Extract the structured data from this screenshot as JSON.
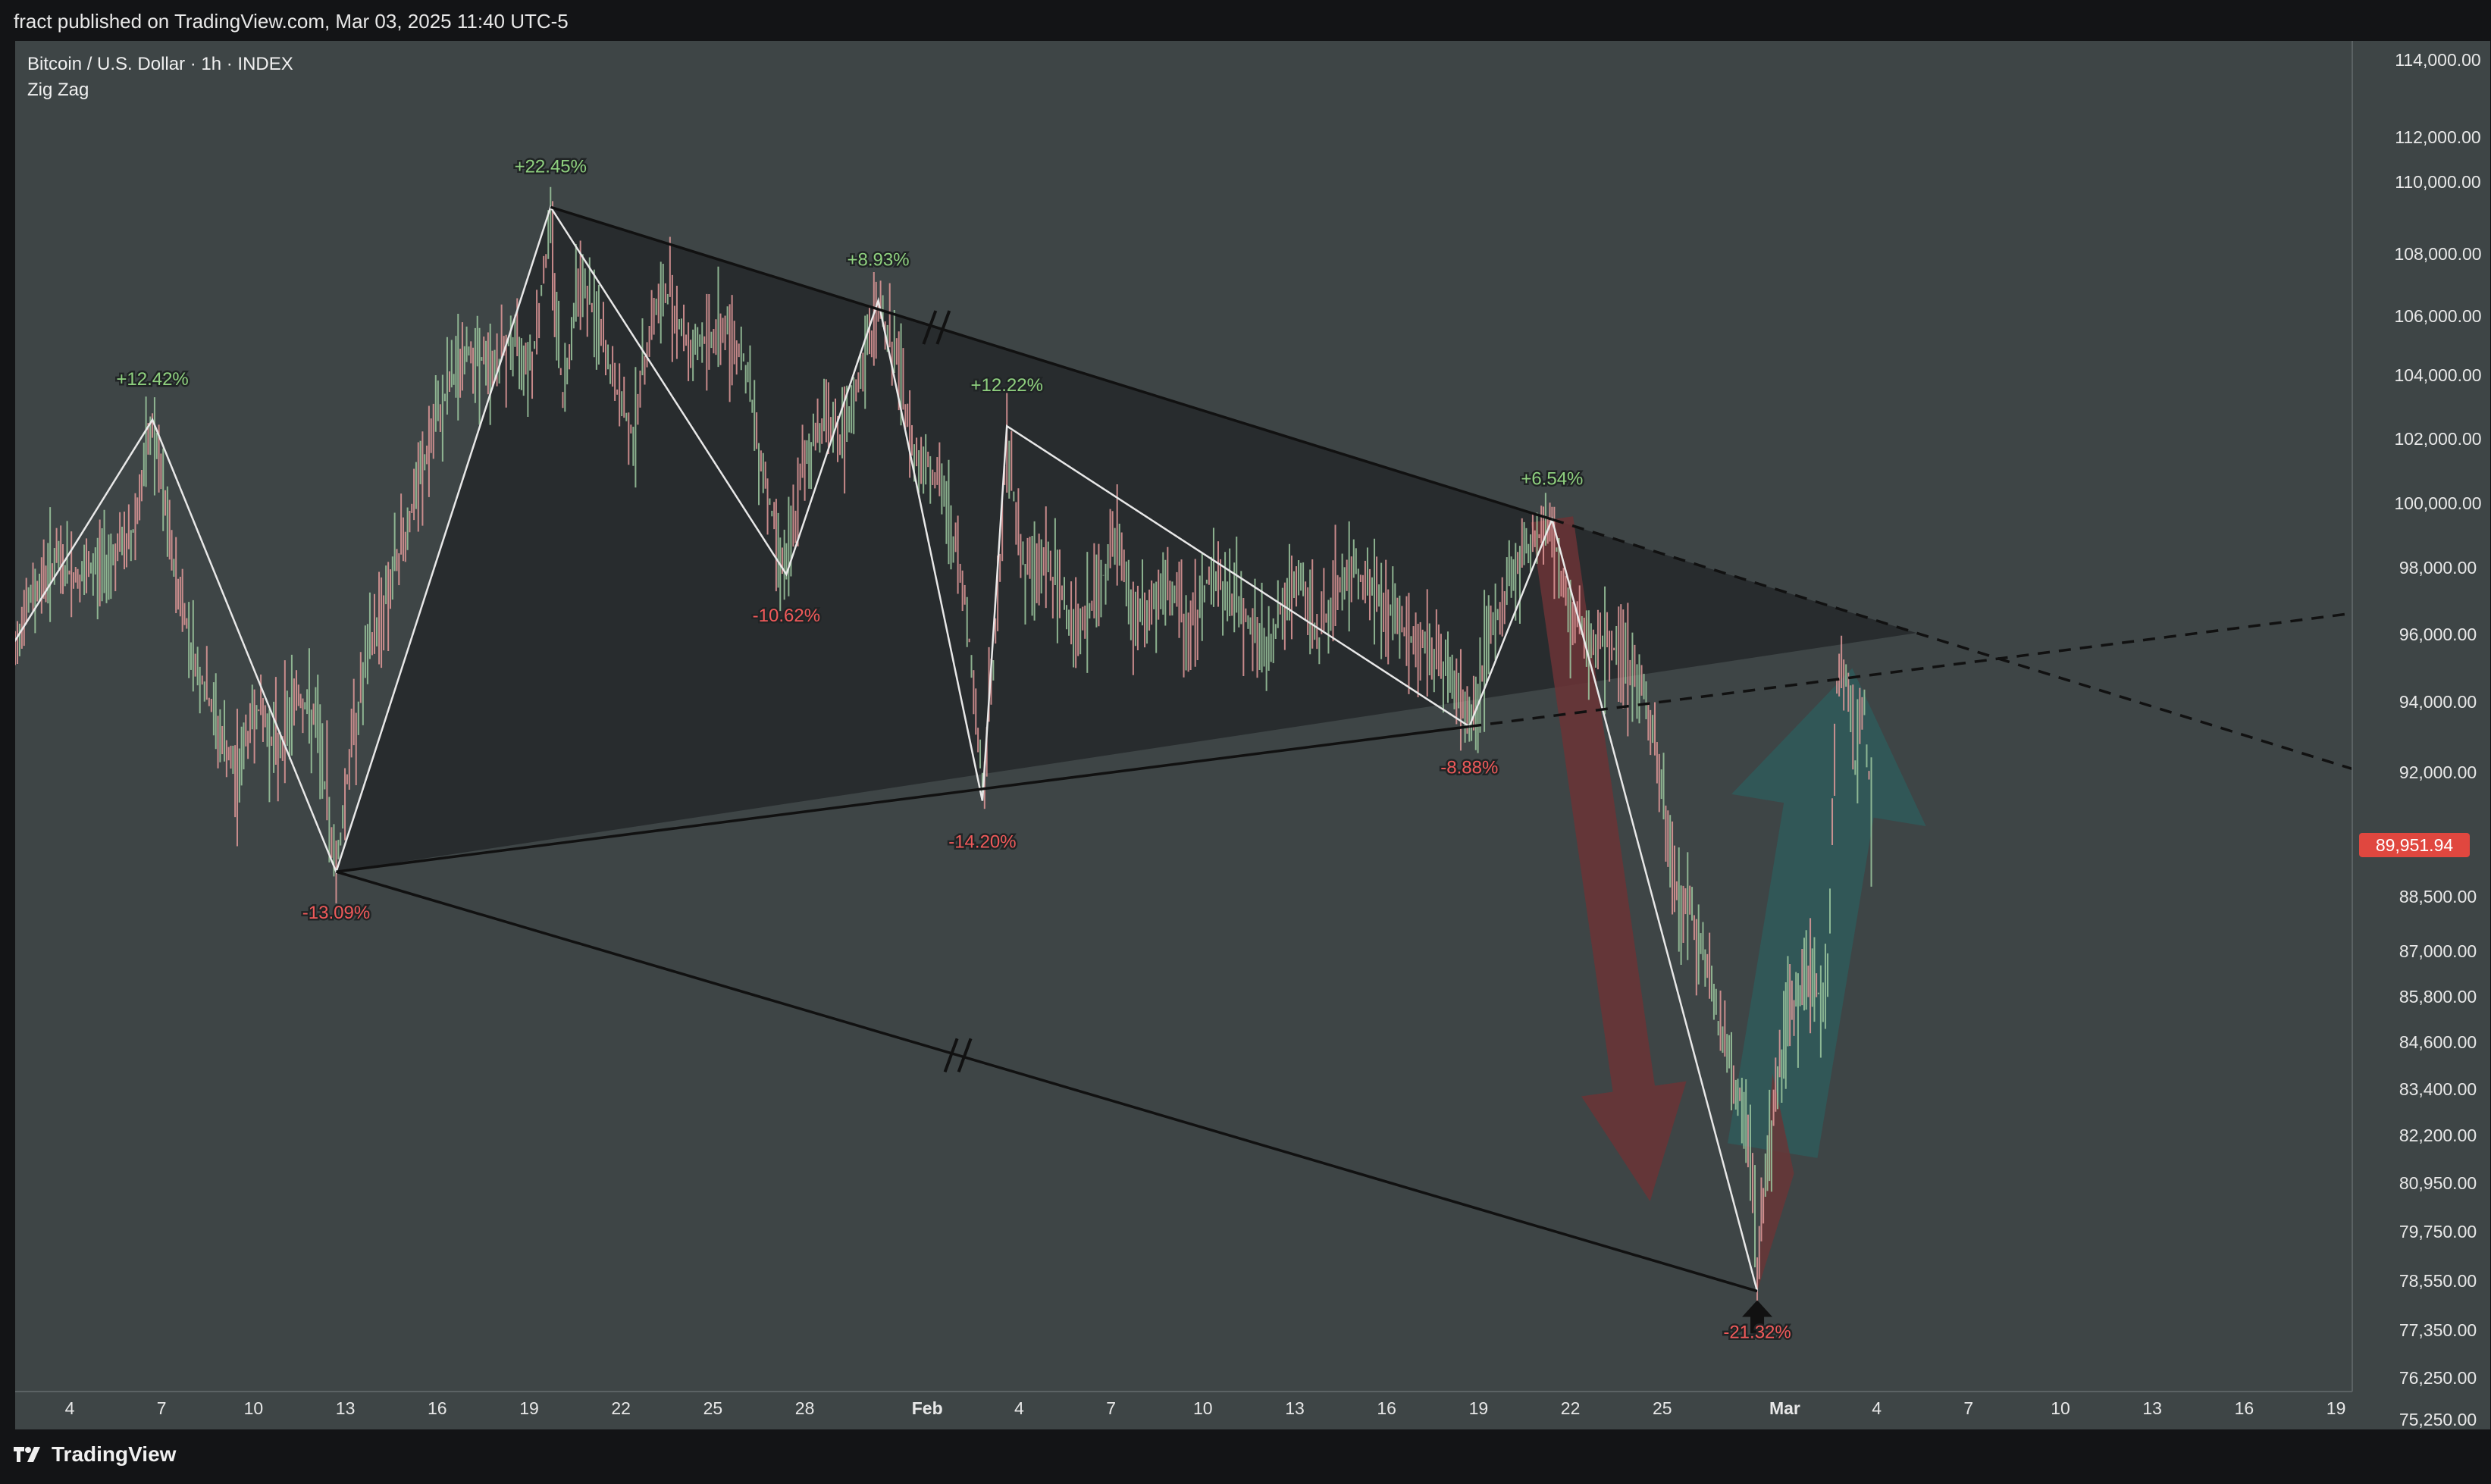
{
  "header": {
    "published": "fract published on TradingView.com, Mar 03, 2025 11:40 UTC-5"
  },
  "legend": {
    "symbol": "Bitcoin / U.S. Dollar · 1h · INDEX",
    "indicator": "Zig Zag"
  },
  "footer": {
    "brand": "TradingView"
  },
  "colors": {
    "background": "#3e4546",
    "triangle_fill": "#24282a",
    "up_label": "#8fd17f",
    "down_label": "#f05a5a",
    "price_badge": "#e0473f",
    "bear_arrow": "#6b3436",
    "bull_arrow": "#2f5a5a"
  },
  "chart_data": {
    "type": "line",
    "title": "",
    "instrument": "Bitcoin / U.S. Dollar · 1h · INDEX",
    "ylim": [
      75000,
      114500
    ],
    "xlim_days": [
      -28,
      49
    ],
    "y_ticks": [
      {
        "value": 114000,
        "label": "114,000.00"
      },
      {
        "value": 112000,
        "label": "112,000.00"
      },
      {
        "value": 110000,
        "label": "110,000.00"
      },
      {
        "value": 108000,
        "label": "108,000.00"
      },
      {
        "value": 106000,
        "label": "106,000.00"
      },
      {
        "value": 104000,
        "label": "104,000.00"
      },
      {
        "value": 102000,
        "label": "102,000.00"
      },
      {
        "value": 100000,
        "label": "100,000.00"
      },
      {
        "value": 98000,
        "label": "98,000.00"
      },
      {
        "value": 96000,
        "label": "96,000.00"
      },
      {
        "value": 94000,
        "label": "94,000.00"
      },
      {
        "value": 92000,
        "label": "92,000.00"
      },
      {
        "value": 88500,
        "label": "88,500.00"
      },
      {
        "value": 87000,
        "label": "87,000.00"
      },
      {
        "value": 85800,
        "label": "85,800.00"
      },
      {
        "value": 84600,
        "label": "84,600.00"
      },
      {
        "value": 83400,
        "label": "83,400.00"
      },
      {
        "value": 82200,
        "label": "82,200.00"
      },
      {
        "value": 80950,
        "label": "80,950.00"
      },
      {
        "value": 79750,
        "label": "79,750.00"
      },
      {
        "value": 78550,
        "label": "78,550.00"
      },
      {
        "value": 77350,
        "label": "77,350.00"
      },
      {
        "value": 76250,
        "label": "76,250.00"
      },
      {
        "value": 75250,
        "label": "75,250.00"
      }
    ],
    "y_tick_rows": [
      25,
      127,
      186,
      281,
      363,
      441,
      525,
      610,
      695,
      783,
      872,
      965,
      1129,
      1201,
      1261,
      1321,
      1383,
      1444,
      1507,
      1571,
      1636,
      1701,
      1764,
      1819
    ],
    "current_price": {
      "value": 89951.94,
      "label": "89,951.94"
    },
    "x_ticks": [
      {
        "label": "4",
        "day": -28
      },
      {
        "label": "7",
        "day": -25
      },
      {
        "label": "10",
        "day": -22
      },
      {
        "label": "13",
        "day": -19
      },
      {
        "label": "16",
        "day": -16
      },
      {
        "label": "19",
        "day": -13
      },
      {
        "label": "22",
        "day": -10
      },
      {
        "label": "25",
        "day": -7
      },
      {
        "label": "28",
        "day": -4
      },
      {
        "label": "Feb",
        "day": 0,
        "bold": true
      },
      {
        "label": "4",
        "day": 3
      },
      {
        "label": "7",
        "day": 6
      },
      {
        "label": "10",
        "day": 9
      },
      {
        "label": "13",
        "day": 12
      },
      {
        "label": "16",
        "day": 15
      },
      {
        "label": "19",
        "day": 18
      },
      {
        "label": "22",
        "day": 21
      },
      {
        "label": "25",
        "day": 24
      },
      {
        "label": "Mar",
        "day": 28,
        "bold": true
      },
      {
        "label": "4",
        "day": 31
      },
      {
        "label": "7",
        "day": 34
      },
      {
        "label": "10",
        "day": 37
      },
      {
        "label": "13",
        "day": 40
      },
      {
        "label": "16",
        "day": 43
      },
      {
        "label": "19",
        "day": 46
      }
    ],
    "zigzag": [
      {
        "day": -30,
        "price": 95500
      },
      {
        "day": -25.3,
        "price": 102600
      },
      {
        "day": -19.3,
        "price": 89200,
        "label": "-13.09%",
        "dir": "down"
      },
      {
        "day": -12.3,
        "price": 109300,
        "label": "+22.45%",
        "dir": "up"
      },
      {
        "day": -4.6,
        "price": 97800,
        "label": "-10.62%",
        "dir": "down"
      },
      {
        "day": -1.6,
        "price": 106500,
        "label": "+8.93%",
        "dir": "up"
      },
      {
        "day": 1.8,
        "price": 91200,
        "label": "-14.20%",
        "dir": "down"
      },
      {
        "day": 2.6,
        "price": 102400,
        "label": "+12.22%",
        "dir": "up"
      },
      {
        "day": 17.7,
        "price": 93300,
        "label": "-8.88%",
        "dir": "down"
      },
      {
        "day": 20.4,
        "price": 99500,
        "label": "+6.54%",
        "dir": "up"
      },
      {
        "day": 27.1,
        "price": 78300,
        "label": "-21.32%",
        "dir": "down"
      }
    ],
    "first_up_label": {
      "day": -25.3,
      "price": 102600,
      "label": "+12.42%",
      "dir": "up"
    },
    "price_path": [
      [
        -30,
        95500
      ],
      [
        -29.2,
        97200
      ],
      [
        -28.5,
        98200
      ],
      [
        -27.6,
        97600
      ],
      [
        -26.8,
        98300
      ],
      [
        -26,
        98800
      ],
      [
        -25.3,
        102400
      ],
      [
        -24.6,
        98000
      ],
      [
        -23.9,
        95200
      ],
      [
        -23.3,
        93600
      ],
      [
        -22.6,
        91800
      ],
      [
        -21.9,
        93900
      ],
      [
        -21.2,
        92600
      ],
      [
        -20.6,
        94300
      ],
      [
        -19.9,
        93200
      ],
      [
        -19.3,
        89300
      ],
      [
        -18.8,
        92800
      ],
      [
        -18.2,
        95600
      ],
      [
        -17.6,
        97300
      ],
      [
        -16.9,
        99500
      ],
      [
        -16.2,
        101900
      ],
      [
        -15.6,
        103800
      ],
      [
        -14.9,
        104900
      ],
      [
        -14.2,
        104200
      ],
      [
        -13.6,
        105100
      ],
      [
        -12.9,
        104600
      ],
      [
        -12.3,
        108900
      ],
      [
        -11.9,
        103200
      ],
      [
        -11.4,
        107500
      ],
      [
        -10.8,
        105800
      ],
      [
        -10.2,
        103600
      ],
      [
        -9.6,
        102100
      ],
      [
        -9.0,
        105900
      ],
      [
        -8.4,
        106800
      ],
      [
        -7.8,
        104900
      ],
      [
        -7.2,
        105200
      ],
      [
        -6.6,
        105600
      ],
      [
        -6.0,
        104700
      ],
      [
        -5.5,
        101800
      ],
      [
        -5.0,
        99300
      ],
      [
        -4.6,
        97900
      ],
      [
        -4.0,
        101300
      ],
      [
        -3.3,
        102900
      ],
      [
        -2.7,
        101800
      ],
      [
        -2.1,
        104300
      ],
      [
        -1.6,
        106300
      ],
      [
        -1.0,
        104600
      ],
      [
        -0.5,
        101700
      ],
      [
        0.1,
        101200
      ],
      [
        0.7,
        99700
      ],
      [
        1.3,
        96600
      ],
      [
        1.8,
        91500
      ],
      [
        2.3,
        96700
      ],
      [
        2.6,
        101900
      ],
      [
        3.2,
        97800
      ],
      [
        3.8,
        98300
      ],
      [
        4.4,
        97100
      ],
      [
        5.0,
        96100
      ],
      [
        5.6,
        97400
      ],
      [
        6.2,
        98900
      ],
      [
        6.8,
        96300
      ],
      [
        7.4,
        96900
      ],
      [
        8.0,
        97200
      ],
      [
        8.6,
        96100
      ],
      [
        9.2,
        97800
      ],
      [
        9.8,
        97300
      ],
      [
        10.4,
        96600
      ],
      [
        11.0,
        95400
      ],
      [
        11.6,
        96800
      ],
      [
        12.2,
        97500
      ],
      [
        12.8,
        95900
      ],
      [
        13.4,
        97400
      ],
      [
        14.0,
        97900
      ],
      [
        14.6,
        97300
      ],
      [
        15.2,
        96500
      ],
      [
        15.8,
        95900
      ],
      [
        16.4,
        95600
      ],
      [
        17.0,
        94900
      ],
      [
        17.7,
        93400
      ],
      [
        18.4,
        95900
      ],
      [
        19.0,
        97600
      ],
      [
        19.7,
        98700
      ],
      [
        20.4,
        99300
      ],
      [
        21.0,
        96300
      ],
      [
        21.6,
        96100
      ],
      [
        22.2,
        95700
      ],
      [
        22.8,
        95400
      ],
      [
        23.4,
        94200
      ],
      [
        23.9,
        91900
      ],
      [
        24.4,
        88900
      ],
      [
        24.9,
        88200
      ],
      [
        25.4,
        86900
      ],
      [
        25.9,
        84800
      ],
      [
        26.4,
        83600
      ],
      [
        26.8,
        82200
      ],
      [
        27.1,
        78600
      ],
      [
        27.5,
        82100
      ],
      [
        27.9,
        84300
      ],
      [
        28.3,
        85600
      ],
      [
        28.7,
        86300
      ],
      [
        29.1,
        85900
      ],
      [
        29.4,
        86200
      ],
      [
        29.7,
        94400
      ],
      [
        30.0,
        95100
      ],
      [
        30.3,
        92300
      ],
      [
        30.6,
        93700
      ],
      [
        30.9,
        89950
      ]
    ],
    "resistance_line": {
      "from": {
        "day": -12.3,
        "price": 109300
      },
      "to": {
        "day": 20.4,
        "price": 99500
      },
      "extended_to": {
        "day": 49,
        "price": 92200
      }
    },
    "support_line": {
      "from": {
        "day": -19.3,
        "price": 89200
      },
      "to": {
        "day": 17.7,
        "price": 93300
      },
      "extended_to": {
        "day": 49,
        "price": 96700
      }
    },
    "parallel_line": {
      "from": {
        "day": -19.3,
        "price": 89200
      },
      "to": {
        "day": 27.1,
        "price": 78300
      }
    },
    "bear_arrow": {
      "from": {
        "day": 20.4,
        "price": 99500
      },
      "to": {
        "day": 23.6,
        "price": 80500
      }
    },
    "bull_arrow": {
      "from": {
        "day": 27.6,
        "price": 81800
      },
      "to": {
        "day": 30.2,
        "price": 95000
      }
    }
  }
}
